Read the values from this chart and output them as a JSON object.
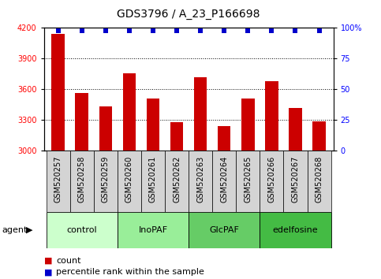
{
  "title": "GDS3796 / A_23_P166698",
  "samples": [
    "GSM520257",
    "GSM520258",
    "GSM520259",
    "GSM520260",
    "GSM520261",
    "GSM520262",
    "GSM520263",
    "GSM520264",
    "GSM520265",
    "GSM520266",
    "GSM520267",
    "GSM520268"
  ],
  "bar_values": [
    4140,
    3560,
    3430,
    3760,
    3510,
    3280,
    3720,
    3240,
    3510,
    3680,
    3420,
    3290
  ],
  "percentile_values": [
    98,
    98,
    98,
    98,
    98,
    98,
    98,
    98,
    98,
    98,
    98,
    98
  ],
  "bar_color": "#cc0000",
  "dot_color": "#0000cc",
  "ylim_left": [
    3000,
    4200
  ],
  "ylim_right": [
    0,
    100
  ],
  "yticks_left": [
    3000,
    3300,
    3600,
    3900,
    4200
  ],
  "yticks_right": [
    0,
    25,
    50,
    75,
    100
  ],
  "ytick_labels_right": [
    "0",
    "25",
    "50",
    "75",
    "100%"
  ],
  "groups": [
    {
      "label": "control",
      "start": 0,
      "end": 3,
      "color": "#ccffcc"
    },
    {
      "label": "InoPAF",
      "start": 3,
      "end": 6,
      "color": "#99ee99"
    },
    {
      "label": "GlcPAF",
      "start": 6,
      "end": 9,
      "color": "#66cc66"
    },
    {
      "label": "edelfosine",
      "start": 9,
      "end": 12,
      "color": "#44bb44"
    }
  ],
  "agent_label": "agent",
  "legend_count_label": "count",
  "legend_pct_label": "percentile rank within the sample",
  "bar_width": 0.55,
  "title_fontsize": 10,
  "tick_fontsize": 7,
  "label_fontsize": 8,
  "group_label_fontsize": 8,
  "sample_box_color": "#d4d4d4",
  "background_color": "#ffffff",
  "plot_bg_color": "#ffffff"
}
